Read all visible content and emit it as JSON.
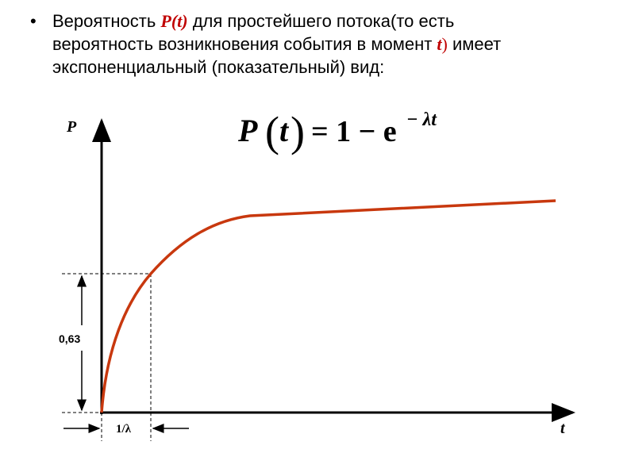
{
  "bullet": {
    "marker": "•",
    "lines": [
      [
        "Вероятность ",
        "P(t)",
        " для простейшего потока(то есть"
      ],
      [
        "вероятность возникновения события в момент ",
        "t",
        ")",
        " имеет"
      ],
      [
        "экспоненциальный (показательный) вид:"
      ]
    ]
  },
  "formula": {
    "p": "P",
    "open": "(",
    "arg": "t",
    "close": ")",
    "rhs": "= 1 − e",
    "exp": "− λt"
  },
  "graph": {
    "y_label": "P",
    "x_label": "t",
    "level_label": "0,63",
    "time_label": "1/λ"
  }
}
